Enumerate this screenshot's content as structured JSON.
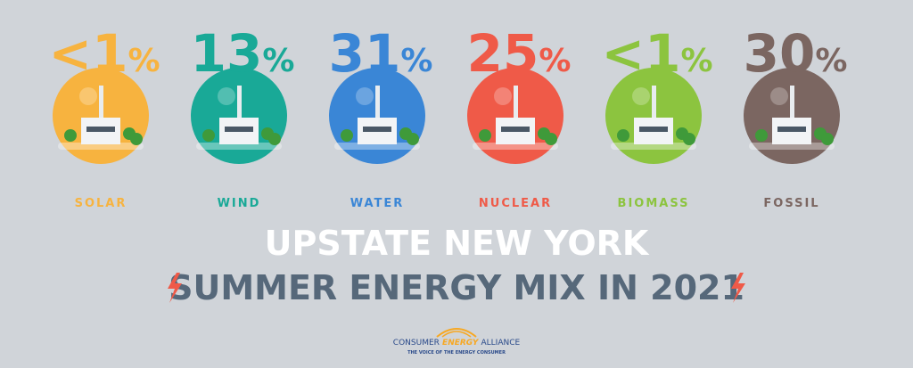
{
  "items": [
    {
      "value_text": "<1",
      "unit": "%",
      "label": "SOLAR",
      "color": "#f7b33f"
    },
    {
      "value_text": "13",
      "unit": "%",
      "label": "WIND",
      "color": "#19a997"
    },
    {
      "value_text": "31",
      "unit": "%",
      "label": "WATER",
      "color": "#3a86d6"
    },
    {
      "value_text": "25",
      "unit": "%",
      "label": "NUCLEAR",
      "color": "#ef5a48"
    },
    {
      "value_text": "<1",
      "unit": "%",
      "label": "BIOMASS",
      "color": "#8cc43f"
    },
    {
      "value_text": "30",
      "unit": "%",
      "label": "FOSSIL",
      "color": "#7b6661"
    }
  ],
  "title": {
    "line1": "UPSTATE NEW YORK",
    "line2": "SUMMER ENERGY MIX IN 2021"
  },
  "logo": {
    "word1": "CONSUMER",
    "word2": "ENERGY",
    "word3": "ALLIANCE",
    "tagline": "THE VOICE OF THE ENERGY CONSUMER"
  }
}
